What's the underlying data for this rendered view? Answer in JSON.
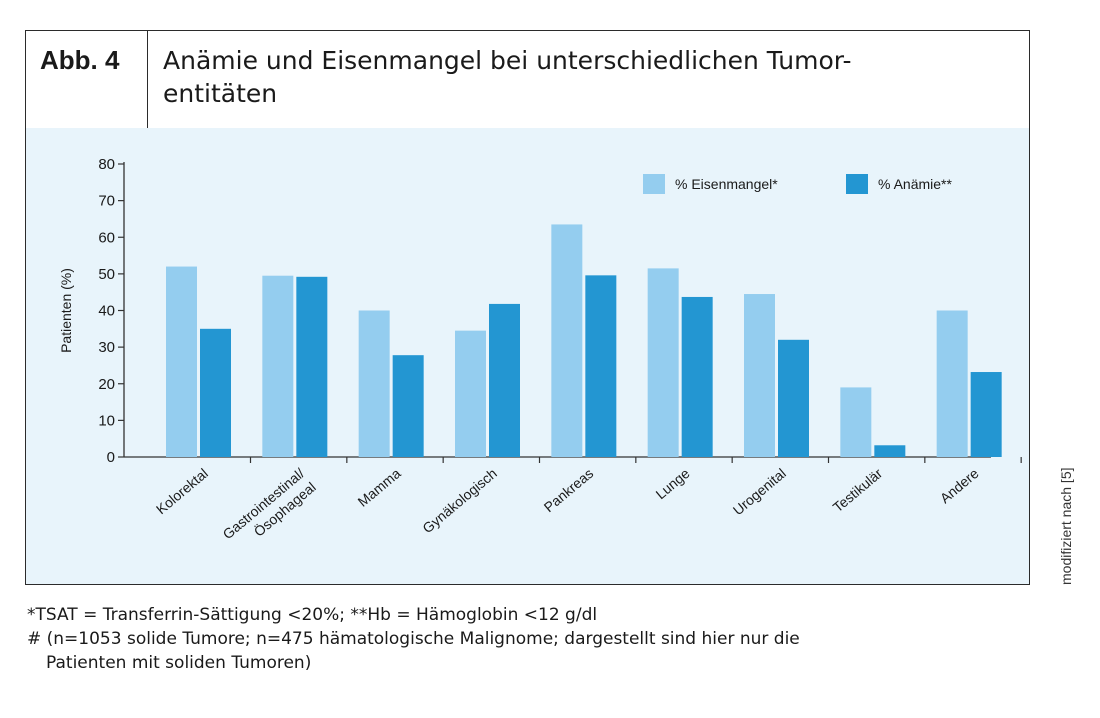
{
  "figure": {
    "number": "Abb. 4",
    "title_line1": "Anämie und Eisenmangel bei unterschiedlichen Tumor-",
    "title_line2": "entitäten"
  },
  "side_note": "modifiziert nach [5]",
  "footnotes": {
    "line1": "*TSAT = Transferrin-Sättigung <20%; **Hb = Hämoglobin <12 g/dl",
    "line2": "# (n=1053 solide Tumore; n=475 hämatologische Malignome; dargestellt sind hier nur die",
    "line3": "Patienten mit soliden Tumoren)"
  },
  "colors": {
    "eisenmangel": "#94cdef",
    "anaemie": "#2396d2",
    "plot_background": "#e8f4fb",
    "axis": "#333333"
  },
  "chart_data": {
    "type": "bar",
    "ylabel": "Patienten (%)",
    "xlabel": "",
    "ylim": [
      0,
      80
    ],
    "yticks": [
      0,
      10,
      20,
      30,
      40,
      50,
      60,
      70,
      80
    ],
    "grid": false,
    "legend_position": "top-right",
    "categories": [
      [
        "Kolorektal"
      ],
      [
        "Gastrointestinal/",
        "Ösophageal"
      ],
      [
        "Mamma"
      ],
      [
        "Gynäkologisch"
      ],
      [
        "Pankreas"
      ],
      [
        "Lunge"
      ],
      [
        "Urogenital"
      ],
      [
        "Testikulär"
      ],
      [
        "Andere"
      ]
    ],
    "series": [
      {
        "name": "% Eisenmangel*",
        "color": "#94cdef",
        "values": [
          52,
          49.5,
          40,
          34.5,
          63.5,
          51.5,
          44.5,
          19,
          40
        ]
      },
      {
        "name": "% Anämie**",
        "color": "#2396d2",
        "values": [
          35,
          49.2,
          27.8,
          41.8,
          49.6,
          43.7,
          32,
          3.2,
          23.2
        ]
      }
    ]
  }
}
